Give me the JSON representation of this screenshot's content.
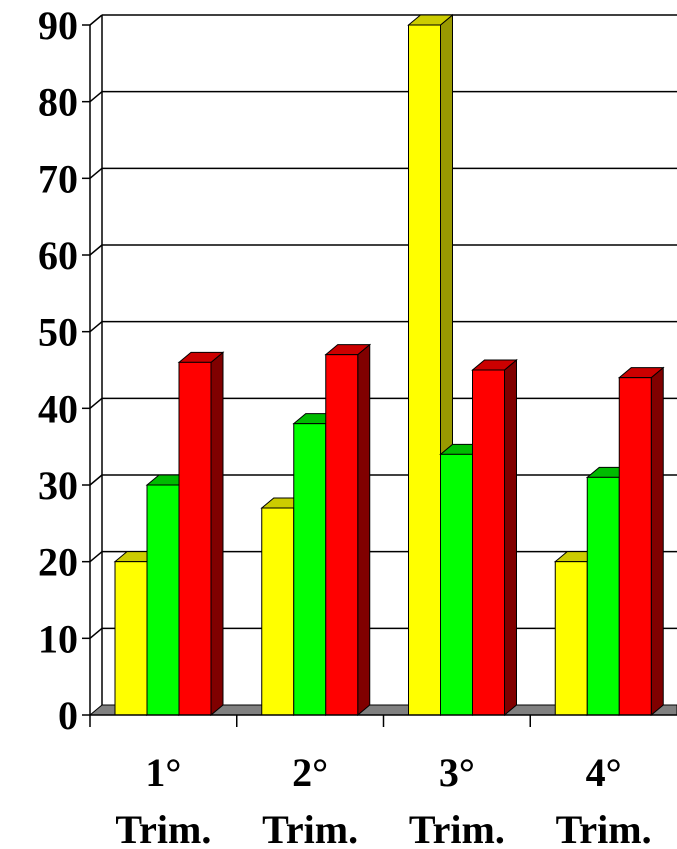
{
  "chart_data": {
    "type": "bar",
    "title": "",
    "xlabel": "",
    "ylabel": "",
    "ylim": [
      0,
      90
    ],
    "yticks": [
      0,
      10,
      20,
      30,
      40,
      50,
      60,
      70,
      80,
      90
    ],
    "grid": true,
    "legend": "none",
    "categories": [
      {
        "line1": "1°",
        "line2": "Trim."
      },
      {
        "line1": "2°",
        "line2": "Trim."
      },
      {
        "line1": "3°",
        "line2": "Trim."
      },
      {
        "line1": "4°",
        "line2": "Trim."
      }
    ],
    "series": [
      {
        "values": [
          20,
          27,
          90,
          20
        ],
        "color": "#ffff00",
        "side": "#999900",
        "top": "#cccc00"
      },
      {
        "values": [
          30,
          38,
          34,
          31
        ],
        "color": "#00ff00",
        "side": "#008800",
        "top": "#00bb00"
      },
      {
        "values": [
          46,
          47,
          45,
          44
        ],
        "color": "#ff0000",
        "side": "#800000",
        "top": "#cc0000"
      }
    ],
    "colors": {
      "floor": "#808080",
      "grid": "#000000",
      "axis": "#000000"
    }
  }
}
